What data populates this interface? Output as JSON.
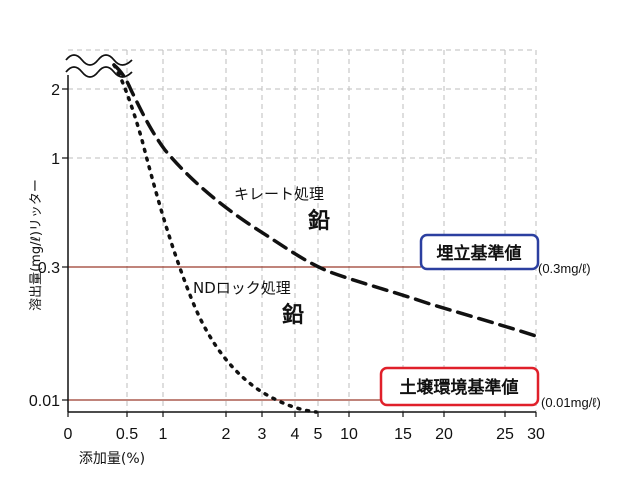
{
  "chart_data": {
    "type": "line",
    "ylabel": "溶出量(mg/ℓ)リッター",
    "xlabel": "添加量(%)",
    "x_ticks": [
      "0",
      "0.5",
      "1",
      "2",
      "3",
      "4",
      "5",
      "10",
      "15",
      "20",
      "25",
      "30"
    ],
    "y_ticks": [
      "2",
      "1",
      "0.3",
      "0.01"
    ],
    "grid": true,
    "series": [
      {
        "name": "キレート処理",
        "sub": "鉛",
        "style": "dashed",
        "points": [
          [
            0.3,
            2.3
          ],
          [
            0.5,
            2.25
          ],
          [
            1,
            1.55
          ],
          [
            2,
            1.05
          ],
          [
            3,
            0.72
          ],
          [
            4,
            0.52
          ],
          [
            5,
            0.35
          ],
          [
            10,
            0.25
          ],
          [
            15,
            0.18
          ],
          [
            20,
            0.12
          ],
          [
            25,
            0.07
          ],
          [
            30,
            0.02
          ]
        ]
      },
      {
        "name": "NDロック処理",
        "sub": "鉛",
        "style": "dotted",
        "points": [
          [
            0.3,
            2.3
          ],
          [
            0.5,
            2.2
          ],
          [
            1,
            0.7
          ],
          [
            2,
            -0.1
          ],
          [
            3,
            -0.42
          ],
          [
            4,
            -0.6
          ],
          [
            5,
            -0.65
          ]
        ]
      }
    ],
    "reference_lines": [
      {
        "y": 0.3,
        "label": "埋立基準値",
        "value_label": "(0.3mg/ℓ)",
        "box_color": "#2b3fa0"
      },
      {
        "y": 0.01,
        "label": "土壌環境基準値",
        "value_label": "(0.01mg/ℓ)",
        "box_color": "#e0202a"
      }
    ],
    "line_color": "#9b3a2c"
  }
}
